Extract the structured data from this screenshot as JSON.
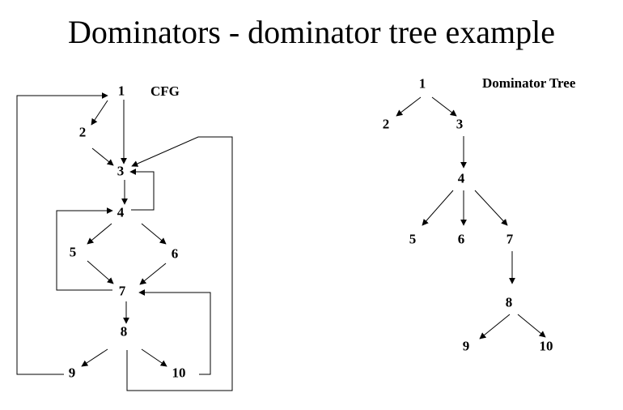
{
  "title": "Dominators - dominator tree example",
  "cfg": {
    "caption": "CFG",
    "nodes": [
      {
        "id": "c1",
        "label": "1"
      },
      {
        "id": "c2",
        "label": "2"
      },
      {
        "id": "c3",
        "label": "3"
      },
      {
        "id": "c4",
        "label": "4"
      },
      {
        "id": "c5",
        "label": "5"
      },
      {
        "id": "c6",
        "label": "6"
      },
      {
        "id": "c7",
        "label": "7"
      },
      {
        "id": "c8",
        "label": "8"
      },
      {
        "id": "c9",
        "label": "9"
      },
      {
        "id": "c10",
        "label": "10"
      }
    ],
    "edges": [
      {
        "from": "1",
        "to": "2"
      },
      {
        "from": "1",
        "to": "3"
      },
      {
        "from": "2",
        "to": "3"
      },
      {
        "from": "3",
        "to": "4"
      },
      {
        "from": "4",
        "to": "3"
      },
      {
        "from": "4",
        "to": "5"
      },
      {
        "from": "4",
        "to": "6"
      },
      {
        "from": "5",
        "to": "7"
      },
      {
        "from": "6",
        "to": "7"
      },
      {
        "from": "7",
        "to": "4"
      },
      {
        "from": "7",
        "to": "8"
      },
      {
        "from": "8",
        "to": "9"
      },
      {
        "from": "8",
        "to": "10"
      },
      {
        "from": "8",
        "to": "3"
      },
      {
        "from": "9",
        "to": "1"
      },
      {
        "from": "10",
        "to": "7"
      }
    ]
  },
  "dominator_tree": {
    "caption": "Dominator Tree",
    "nodes": [
      {
        "id": "d1",
        "label": "1"
      },
      {
        "id": "d2",
        "label": "2"
      },
      {
        "id": "d3",
        "label": "3"
      },
      {
        "id": "d4",
        "label": "4"
      },
      {
        "id": "d5",
        "label": "5"
      },
      {
        "id": "d6",
        "label": "6"
      },
      {
        "id": "d7",
        "label": "7"
      },
      {
        "id": "d8",
        "label": "8"
      },
      {
        "id": "d9",
        "label": "9"
      },
      {
        "id": "d10",
        "label": "10"
      }
    ],
    "edges": [
      {
        "from": "1",
        "to": "2"
      },
      {
        "from": "1",
        "to": "3"
      },
      {
        "from": "3",
        "to": "4"
      },
      {
        "from": "4",
        "to": "5"
      },
      {
        "from": "4",
        "to": "6"
      },
      {
        "from": "4",
        "to": "7"
      },
      {
        "from": "7",
        "to": "8"
      },
      {
        "from": "8",
        "to": "9"
      },
      {
        "from": "8",
        "to": "10"
      }
    ]
  }
}
